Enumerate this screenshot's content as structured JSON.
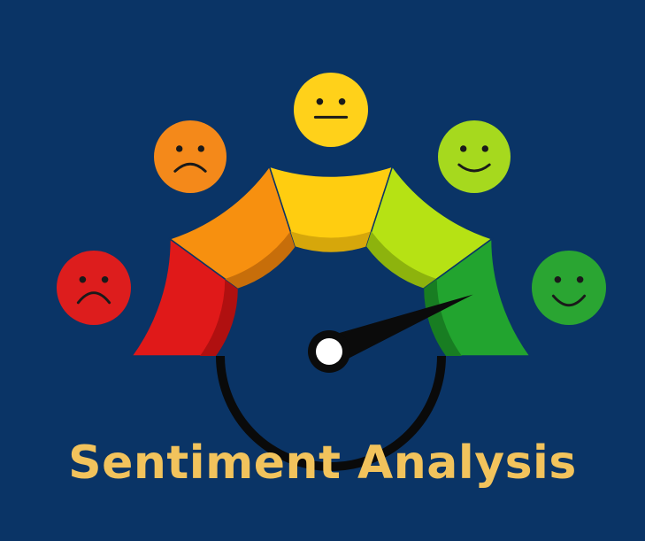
{
  "title": "Sentiment Analysis",
  "colors": {
    "background": "#0a3466",
    "title": "#f2c35c",
    "needle": "#0b0b0b",
    "hub": "#ffffff",
    "inner_arc": "#0a0a0a",
    "face_features": "#1a1a1a"
  },
  "gauge": {
    "needle_level": 0.88,
    "segments": [
      {
        "name": "very-negative",
        "color": "#e01919",
        "shade": "#b01010"
      },
      {
        "name": "negative",
        "color": "#f7900f",
        "shade": "#c76e0a"
      },
      {
        "name": "neutral",
        "color": "#ffcd10",
        "shade": "#d6a70b"
      },
      {
        "name": "positive",
        "color": "#b6e214",
        "shade": "#8db30d"
      },
      {
        "name": "very-positive",
        "color": "#22a42f",
        "shade": "#187d22"
      }
    ]
  },
  "faces": [
    {
      "name": "very-sad-face-icon",
      "color": "#dd1d1d",
      "mood": "very-sad"
    },
    {
      "name": "sad-face-icon",
      "color": "#f4891a",
      "mood": "sad"
    },
    {
      "name": "neutral-face-icon",
      "color": "#ffd11a",
      "mood": "neutral"
    },
    {
      "name": "happy-face-icon",
      "color": "#a6d91e",
      "mood": "happy"
    },
    {
      "name": "very-happy-face-icon",
      "color": "#2aa532",
      "mood": "very-happy"
    }
  ]
}
